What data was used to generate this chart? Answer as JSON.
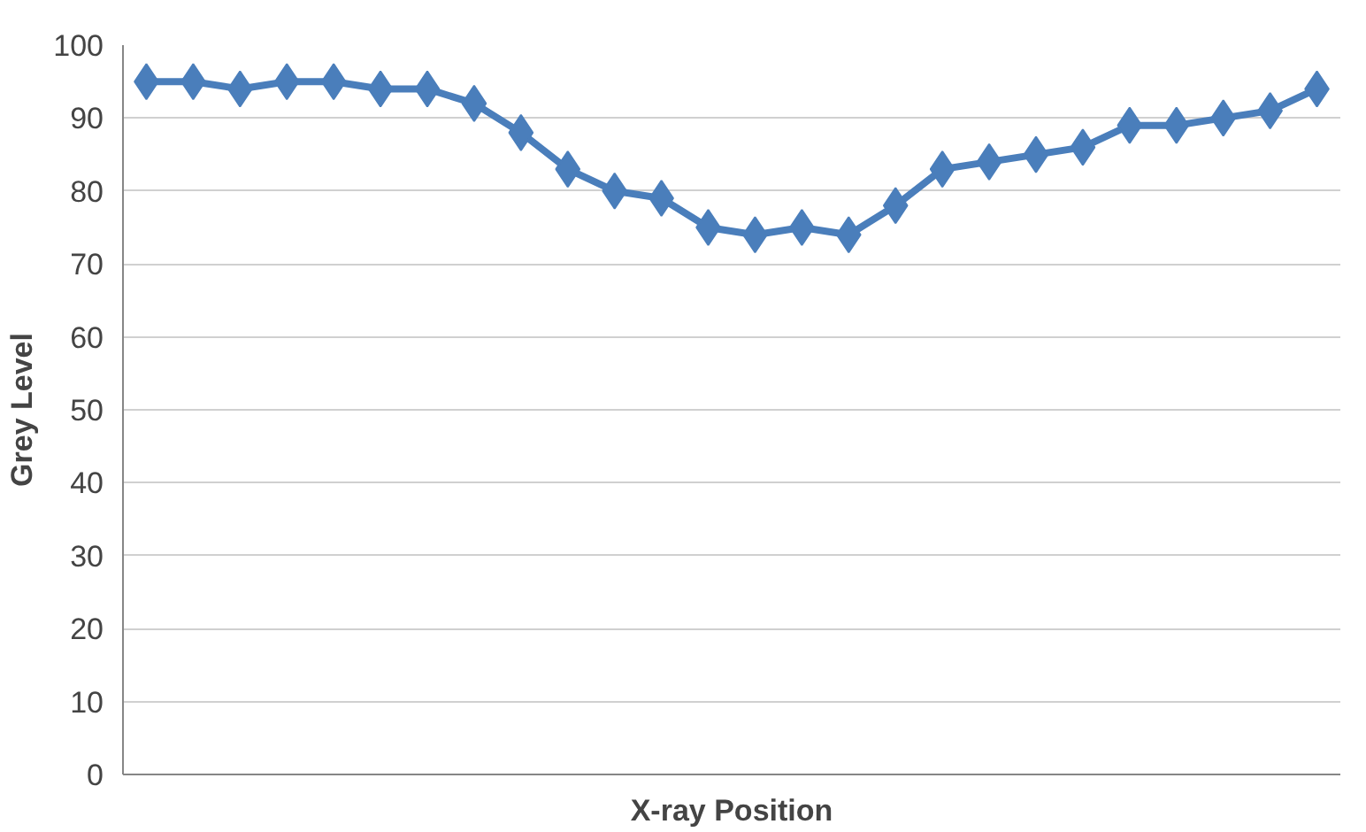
{
  "chart_data": {
    "type": "line",
    "xlabel": "X-ray Position",
    "ylabel": "Grey Level",
    "categories": [
      null,
      null,
      null,
      null,
      null,
      null,
      null,
      null,
      null,
      null,
      null,
      null,
      null,
      null,
      null,
      null,
      null,
      null,
      null,
      null,
      null,
      null,
      null,
      null,
      null,
      null
    ],
    "series": [
      {
        "color": "#4a7ebb",
        "values": [
          95,
          95,
          94,
          95,
          95,
          94,
          94,
          92,
          88,
          83,
          80,
          79,
          75,
          74,
          75,
          74,
          78,
          83,
          84,
          85,
          86,
          89,
          89,
          90,
          91,
          94
        ]
      }
    ],
    "ylim": [
      0,
      100
    ],
    "yticks": [
      0,
      10,
      20,
      30,
      40,
      50,
      60,
      70,
      80,
      90,
      100
    ],
    "grid": "y",
    "marker": "diamond",
    "line_style": "solid"
  }
}
